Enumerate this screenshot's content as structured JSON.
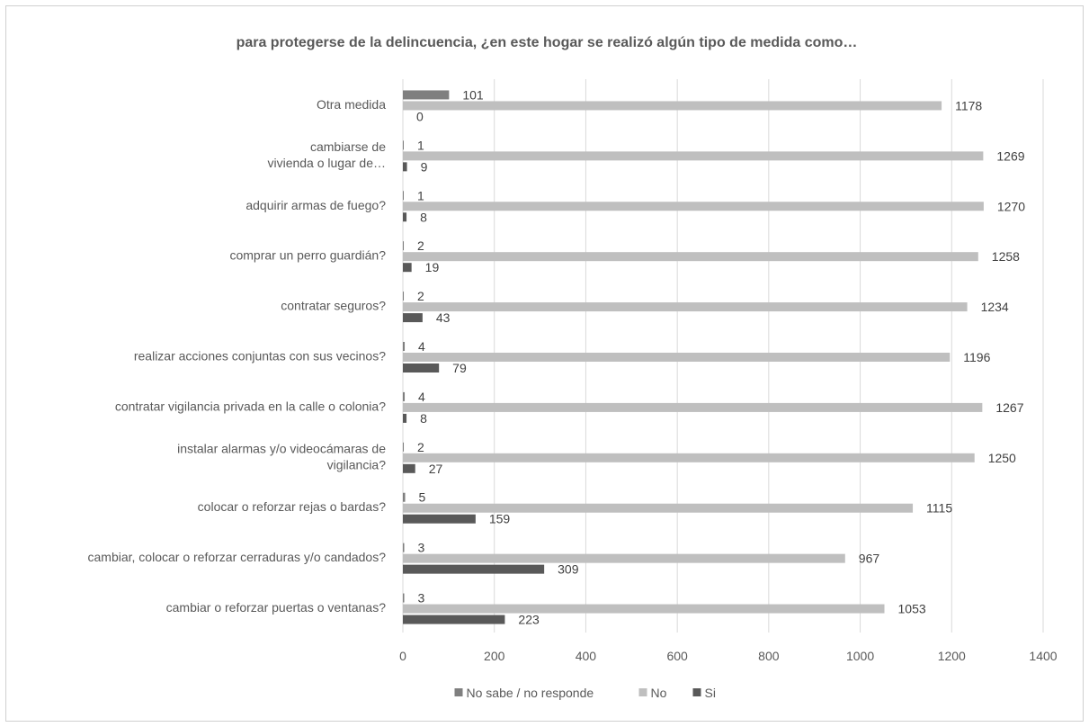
{
  "chart_data": {
    "type": "bar",
    "orientation": "horizontal",
    "title": "para protegerse de la delincuencia, ¿en este hogar se realizó algún tipo de medida como…",
    "categories": [
      [
        "Otra medida"
      ],
      [
        "cambiarse de",
        "vivienda o lugar de…"
      ],
      [
        "adquirir armas de fuego?"
      ],
      [
        "comprar un perro guardián?"
      ],
      [
        "contratar seguros?"
      ],
      [
        "realizar acciones conjuntas con sus vecinos?"
      ],
      [
        "contratar vigilancia privada en la calle o colonia?"
      ],
      [
        "instalar alarmas y/o videocámaras de",
        "vigilancia?"
      ],
      [
        "colocar o reforzar rejas o bardas?"
      ],
      [
        "cambiar, colocar o reforzar cerraduras y/o candados?"
      ],
      [
        "cambiar o reforzar puertas o ventanas?"
      ]
    ],
    "series": [
      {
        "name": "No sabe / no responde",
        "color": "#7f7f7f",
        "values": [
          101,
          1,
          1,
          2,
          2,
          4,
          4,
          2,
          5,
          3,
          3
        ]
      },
      {
        "name": "No",
        "color": "#bfbfbf",
        "values": [
          1178,
          1269,
          1270,
          1258,
          1234,
          1196,
          1267,
          1250,
          1115,
          967,
          1053
        ]
      },
      {
        "name": "Si",
        "color": "#595959",
        "values": [
          0,
          9,
          8,
          19,
          43,
          79,
          8,
          27,
          159,
          309,
          223
        ]
      }
    ],
    "xlim": [
      0,
      1400
    ],
    "xticks": [
      0,
      200,
      400,
      600,
      800,
      1000,
      1200,
      1400
    ],
    "grid": true,
    "legend": "bottom"
  }
}
